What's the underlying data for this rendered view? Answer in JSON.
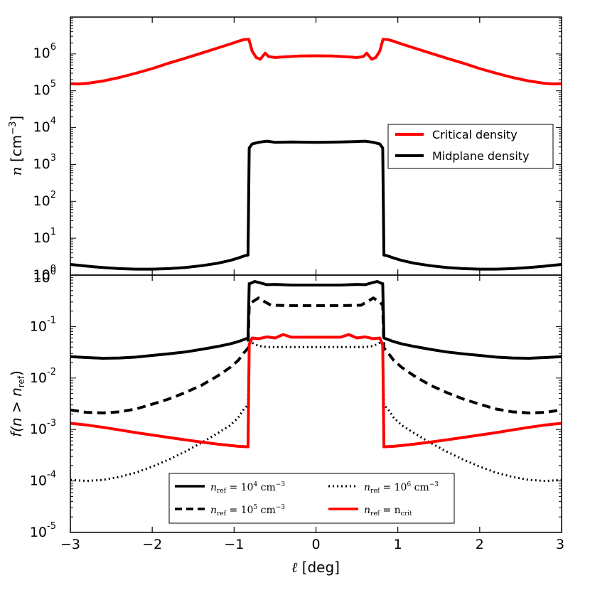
{
  "chart_data": [
    {
      "panel": "top",
      "type": "line",
      "ylabel": {
        "symbol": "n",
        "unit": "cm",
        "exponent": "−3"
      },
      "yscale": "log",
      "ylim": [
        1,
        10000000
      ],
      "xlim": [
        -3,
        3
      ],
      "yticks": [
        {
          "base": "10",
          "exp": "0"
        },
        {
          "base": "10",
          "exp": "1"
        },
        {
          "base": "10",
          "exp": "2"
        },
        {
          "base": "10",
          "exp": "3"
        },
        {
          "base": "10",
          "exp": "4"
        },
        {
          "base": "10",
          "exp": "5"
        },
        {
          "base": "10",
          "exp": "6"
        }
      ],
      "legend_position": "center-right",
      "series": [
        {
          "name": "Critical density",
          "color": "#ff0000",
          "style": "solid",
          "x": [
            -3,
            -2.9,
            -2.8,
            -2.6,
            -2.4,
            -2.2,
            -2,
            -1.8,
            -1.6,
            -1.4,
            -1.2,
            -1.05,
            -0.95,
            -0.88,
            -0.82,
            -0.78,
            -0.73,
            -0.68,
            -0.62,
            -0.58,
            -0.5,
            -0.4,
            -0.2,
            0,
            0.2,
            0.4,
            0.5,
            0.58,
            0.62,
            0.68,
            0.73,
            0.78,
            0.82,
            0.88,
            0.95,
            1.05,
            1.2,
            1.4,
            1.6,
            1.8,
            2,
            2.2,
            2.4,
            2.6,
            2.8,
            2.9,
            3
          ],
          "y": [
            155000,
            153000,
            158000,
            185000,
            230000,
            300000,
            400000,
            560000,
            760000,
            1050000,
            1450000,
            1850000,
            2200000,
            2450000,
            2500000,
            1200000,
            800000,
            720000,
            1050000,
            850000,
            800000,
            830000,
            880000,
            890000,
            880000,
            830000,
            800000,
            850000,
            1050000,
            720000,
            800000,
            1200000,
            2500000,
            2450000,
            2200000,
            1850000,
            1450000,
            1050000,
            760000,
            560000,
            400000,
            300000,
            230000,
            185000,
            158000,
            153000,
            155000
          ]
        },
        {
          "name": "Midplane density",
          "color": "#000000",
          "style": "solid",
          "x": [
            -3,
            -2.8,
            -2.6,
            -2.4,
            -2.2,
            -2,
            -1.8,
            -1.6,
            -1.4,
            -1.2,
            -1.05,
            -0.95,
            -0.88,
            -0.83,
            -0.815,
            -0.78,
            -0.7,
            -0.6,
            -0.5,
            -0.3,
            0,
            0.3,
            0.5,
            0.6,
            0.7,
            0.78,
            0.815,
            0.83,
            0.88,
            0.95,
            1.05,
            1.2,
            1.4,
            1.6,
            1.8,
            2,
            2.2,
            2.4,
            2.6,
            2.8,
            3
          ],
          "y": [
            1.95,
            1.75,
            1.6,
            1.5,
            1.45,
            1.45,
            1.5,
            1.6,
            1.8,
            2.1,
            2.5,
            2.9,
            3.3,
            3.5,
            2800,
            3600,
            4000,
            4300,
            4000,
            4100,
            4000,
            4100,
            4200,
            4300,
            4000,
            3600,
            2800,
            3.5,
            3.3,
            2.9,
            2.5,
            2.1,
            1.8,
            1.6,
            1.5,
            1.45,
            1.45,
            1.5,
            1.6,
            1.75,
            1.95
          ]
        }
      ]
    },
    {
      "panel": "bottom",
      "type": "line",
      "xlabel": {
        "symbol": "ℓ",
        "unit": "[deg]"
      },
      "ylabel": {
        "text": "f(n > n",
        "sub": "ref",
        "close": ")"
      },
      "yscale": "log",
      "ylim": [
        1e-05,
        1
      ],
      "xlim": [
        -3,
        3
      ],
      "xticks": [
        "−3",
        "−2",
        "−1",
        "0",
        "1",
        "2",
        "3"
      ],
      "yticks": [
        {
          "base": "10",
          "exp": "-5"
        },
        {
          "base": "10",
          "exp": "-4"
        },
        {
          "base": "10",
          "exp": "-3"
        },
        {
          "base": "10",
          "exp": "-2"
        },
        {
          "base": "10",
          "exp": "-1"
        },
        {
          "base": "10",
          "exp": "0"
        }
      ],
      "legend_position": "lower-center",
      "legend": [
        {
          "symbol": "n",
          "sub": "ref",
          "eq": " = 10",
          "exp": "4",
          "unit": " cm",
          "uexp": "−3"
        },
        {
          "symbol": "n",
          "sub": "ref",
          "eq": " = 10",
          "exp": "5",
          "unit": " cm",
          "uexp": "−3"
        },
        {
          "symbol": "n",
          "sub": "ref",
          "eq": " = 10",
          "exp": "6",
          "unit": " cm",
          "uexp": "−3"
        },
        {
          "symbol": "n",
          "sub": "ref",
          "eq": " = n",
          "sub2": "crit"
        }
      ],
      "series": [
        {
          "name": "n_ref=1e4",
          "color": "#000000",
          "style": "solid",
          "x": [
            -3,
            -2.8,
            -2.6,
            -2.4,
            -2.2,
            -2,
            -1.8,
            -1.6,
            -1.4,
            -1.2,
            -1.05,
            -0.95,
            -0.88,
            -0.83,
            -0.815,
            -0.8,
            -0.75,
            -0.7,
            -0.6,
            -0.5,
            -0.3,
            0,
            0.3,
            0.5,
            0.6,
            0.7,
            0.75,
            0.8,
            0.815,
            0.83,
            0.88,
            0.95,
            1.05,
            1.2,
            1.4,
            1.6,
            1.8,
            2,
            2.2,
            2.4,
            2.6,
            2.8,
            3
          ],
          "y": [
            0.026,
            0.025,
            0.0242,
            0.0245,
            0.0255,
            0.0275,
            0.0295,
            0.032,
            0.036,
            0.041,
            0.046,
            0.051,
            0.056,
            0.06,
            0.68,
            0.69,
            0.75,
            0.72,
            0.65,
            0.66,
            0.64,
            0.64,
            0.64,
            0.66,
            0.65,
            0.72,
            0.75,
            0.69,
            0.68,
            0.06,
            0.056,
            0.051,
            0.046,
            0.041,
            0.036,
            0.032,
            0.0295,
            0.0275,
            0.0255,
            0.0245,
            0.0242,
            0.025,
            0.026
          ]
        },
        {
          "name": "n_ref=1e5",
          "color": "#000000",
          "style": "dashed",
          "x": [
            -3,
            -2.8,
            -2.6,
            -2.4,
            -2.2,
            -2,
            -1.8,
            -1.6,
            -1.4,
            -1.2,
            -1.05,
            -0.95,
            -0.88,
            -0.83,
            -0.815,
            -0.78,
            -0.7,
            -0.65,
            -0.55,
            -0.3,
            0,
            0.3,
            0.55,
            0.65,
            0.7,
            0.78,
            0.815,
            0.83,
            0.88,
            0.95,
            1.05,
            1.2,
            1.4,
            1.6,
            1.8,
            2,
            2.2,
            2.4,
            2.6,
            2.8,
            3
          ],
          "y": [
            0.0024,
            0.00215,
            0.0021,
            0.0022,
            0.0025,
            0.0031,
            0.0039,
            0.0052,
            0.0072,
            0.011,
            0.016,
            0.022,
            0.031,
            0.038,
            0.26,
            0.3,
            0.36,
            0.32,
            0.26,
            0.255,
            0.255,
            0.255,
            0.26,
            0.32,
            0.36,
            0.3,
            0.26,
            0.038,
            0.031,
            0.022,
            0.016,
            0.011,
            0.0072,
            0.0052,
            0.0039,
            0.0031,
            0.0025,
            0.0022,
            0.0021,
            0.00215,
            0.0024
          ]
        },
        {
          "name": "n_ref=1e6",
          "color": "#000000",
          "style": "dotted",
          "x": [
            -3,
            -2.8,
            -2.6,
            -2.4,
            -2.2,
            -2,
            -1.8,
            -1.6,
            -1.4,
            -1.2,
            -1.05,
            -0.95,
            -0.88,
            -0.83,
            -0.815,
            -0.8,
            -0.7,
            -0.6,
            -0.3,
            0,
            0.3,
            0.6,
            0.7,
            0.8,
            0.815,
            0.83,
            0.88,
            0.95,
            1.05,
            1.2,
            1.4,
            1.6,
            1.8,
            2,
            2.2,
            2.4,
            2.6,
            2.8,
            3
          ],
          "y": [
            0.000105,
            0.0001,
            0.000105,
            0.00012,
            0.000145,
            0.00019,
            0.00026,
            0.00037,
            0.00055,
            0.00085,
            0.0012,
            0.0017,
            0.0025,
            0.003,
            0.04,
            0.05,
            0.042,
            0.04,
            0.04,
            0.04,
            0.04,
            0.04,
            0.042,
            0.05,
            0.04,
            0.003,
            0.0025,
            0.0017,
            0.0012,
            0.00085,
            0.00055,
            0.00037,
            0.00026,
            0.00019,
            0.000145,
            0.00012,
            0.000105,
            0.0001,
            0.000105
          ]
        },
        {
          "name": "n_ref=n_crit",
          "color": "#ff0000",
          "style": "solid",
          "x": [
            -3,
            -2.8,
            -2.6,
            -2.4,
            -2.2,
            -2,
            -1.8,
            -1.6,
            -1.4,
            -1.2,
            -1.05,
            -0.95,
            -0.88,
            -0.83,
            -0.815,
            -0.78,
            -0.7,
            -0.6,
            -0.5,
            -0.4,
            -0.3,
            0,
            0.3,
            0.4,
            0.5,
            0.6,
            0.7,
            0.78,
            0.815,
            0.83,
            0.88,
            0.95,
            1.05,
            1.2,
            1.4,
            1.6,
            1.8,
            2,
            2.2,
            2.4,
            2.6,
            2.8,
            3
          ],
          "y": [
            0.00132,
            0.00122,
            0.0011,
            0.00098,
            0.00087,
            0.00078,
            0.0007,
            0.00063,
            0.00057,
            0.00052,
            0.00049,
            0.00047,
            0.000465,
            0.00046,
            0.045,
            0.06,
            0.058,
            0.063,
            0.06,
            0.07,
            0.062,
            0.062,
            0.062,
            0.07,
            0.06,
            0.063,
            0.058,
            0.06,
            0.045,
            0.00046,
            0.000465,
            0.00047,
            0.00049,
            0.00052,
            0.00057,
            0.00063,
            0.0007,
            0.00078,
            0.00087,
            0.00098,
            0.0011,
            0.00122,
            0.00132
          ]
        }
      ]
    }
  ]
}
